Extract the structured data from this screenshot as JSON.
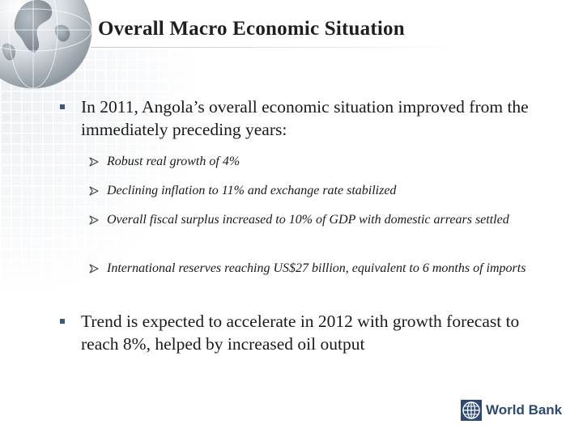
{
  "slide": {
    "title": "Overall Macro Economic Situation",
    "bullets": [
      {
        "text": "In 2011, Angola’s overall economic situation improved from the immediately preceding years:",
        "subitems": [
          "Robust real growth  of 4%",
          "Declining inflation to 11% and exchange rate stabilized",
          "Overall fiscal surplus increased to 10% of GDP with domestic arrears settled",
          "International reserves reaching US$27 billion, equivalent to 6 months of imports"
        ]
      },
      {
        "text": "Trend is expected to accelerate in 2012 with growth forecast to reach 8%, helped by increased oil output"
      }
    ]
  },
  "logo": {
    "text": "World Bank"
  },
  "icons": [
    "globe-icon",
    "square-bullet-icon",
    "arrow-bullet-icon",
    "world-bank-emblem-icon"
  ],
  "colors": {
    "bullet": "#3c5a78",
    "logo_text": "#2e4a73",
    "background": "#ffffff"
  }
}
